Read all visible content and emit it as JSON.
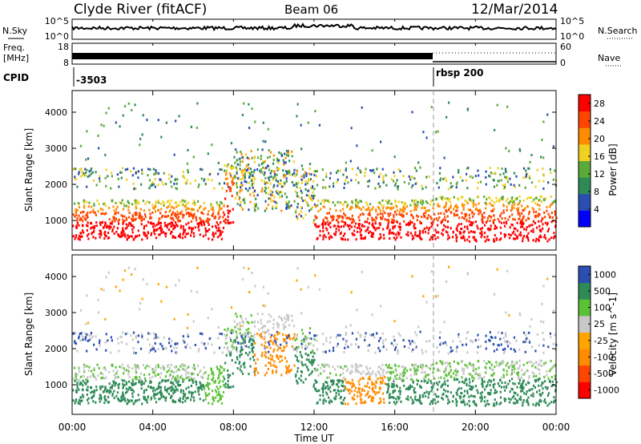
{
  "header": {
    "station": "Clyde River (fitACF)",
    "beam": "Beam 06",
    "date": "12/Mar/2014"
  },
  "summary_panels": {
    "nsky": {
      "label": "N.Sky",
      "ticks": [
        "10^5",
        "10^0"
      ]
    },
    "nsearch": {
      "label": "N.Search",
      "ticks": [
        "10^5",
        "10^0"
      ]
    },
    "freq": {
      "label_line1": "Freq.",
      "label_line2": "[MHz]",
      "ticks": [
        "18",
        "8"
      ]
    },
    "nave": {
      "label": "Nave",
      "ticks": [
        "60",
        "0"
      ]
    },
    "cpid": {
      "label": "CPID",
      "segments": [
        {
          "text": "-3503",
          "start_hour": 0.0
        },
        {
          "text": "rbsp 200",
          "start_hour": 18.0
        }
      ]
    }
  },
  "colors": {
    "power": [
      "#0000ff",
      "#2a4fb0",
      "#2e8b57",
      "#5aaa3a",
      "#f0d020",
      "#ff8c00",
      "#ff4500",
      "#ff0000"
    ],
    "velocity": [
      "#ff0000",
      "#ff4500",
      "#ff8c00",
      "#ffa500",
      "#c8c8c8",
      "#5bc236",
      "#2e8b57",
      "#2a4fb0"
    ]
  },
  "chart_data": [
    {
      "type": "heatmap",
      "quantity": "Power",
      "ylabel": "Slant Range [km]",
      "xlabel": "Time UT",
      "x_ticks": [
        "00:00",
        "04:00",
        "08:00",
        "12:00",
        "16:00",
        "20:00",
        "00:00"
      ],
      "xlim_hours": [
        0,
        24
      ],
      "ylim": [
        180,
        4600
      ],
      "y_ticks": [
        1000,
        2000,
        3000,
        4000
      ],
      "colorbar_label": "Power [dB]",
      "colorbar_ticks": [
        4,
        8,
        12,
        16,
        20,
        24,
        28
      ],
      "colorbar_range": [
        0,
        30
      ]
    },
    {
      "type": "heatmap",
      "quantity": "Velocity",
      "ylabel": "Slant Range [km]",
      "xlabel": "Time UT",
      "x_ticks": [
        "00:00",
        "04:00",
        "08:00",
        "12:00",
        "16:00",
        "20:00",
        "00:00"
      ],
      "xlim_hours": [
        0,
        24
      ],
      "ylim": [
        180,
        4600
      ],
      "y_ticks": [
        1000,
        2000,
        3000,
        4000
      ],
      "colorbar_label": "Velocity [m s^-1]",
      "colorbar_ticks": [
        "1000",
        "500",
        "100",
        "25",
        "-25",
        "-100",
        "-500",
        "-1000"
      ]
    }
  ]
}
